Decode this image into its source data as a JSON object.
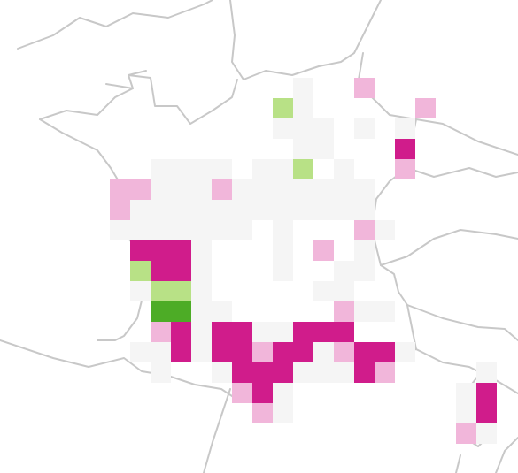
{
  "map": {
    "colors": {
      "-2": "#4dac26",
      "-1": "#b8e186",
      "0": "#f5f5f5",
      "1": "#f1b6da",
      "2": "#d01c8b"
    },
    "cells": [
      [
        9,
        0,
        0
      ],
      [
        12,
        0,
        1
      ],
      [
        8,
        1,
        -1
      ],
      [
        9,
        1,
        0
      ],
      [
        15,
        1,
        1
      ],
      [
        8,
        2,
        0
      ],
      [
        9,
        2,
        0
      ],
      [
        10,
        2,
        0
      ],
      [
        12,
        2,
        0
      ],
      [
        14,
        2,
        0
      ],
      [
        9,
        3,
        0
      ],
      [
        10,
        3,
        0
      ],
      [
        14,
        3,
        2
      ],
      [
        2,
        4,
        0
      ],
      [
        3,
        4,
        0
      ],
      [
        4,
        4,
        0
      ],
      [
        5,
        4,
        0
      ],
      [
        7,
        4,
        0
      ],
      [
        8,
        4,
        0
      ],
      [
        9,
        4,
        -1
      ],
      [
        11,
        4,
        0
      ],
      [
        14,
        4,
        1
      ],
      [
        0,
        5,
        1
      ],
      [
        1,
        5,
        1
      ],
      [
        2,
        5,
        0
      ],
      [
        3,
        5,
        0
      ],
      [
        4,
        5,
        0
      ],
      [
        5,
        5,
        1
      ],
      [
        6,
        5,
        0
      ],
      [
        7,
        5,
        0
      ],
      [
        8,
        5,
        0
      ],
      [
        9,
        5,
        0
      ],
      [
        10,
        5,
        0
      ],
      [
        11,
        5,
        0
      ],
      [
        12,
        5,
        0
      ],
      [
        0,
        6,
        1
      ],
      [
        1,
        6,
        0
      ],
      [
        2,
        6,
        0
      ],
      [
        3,
        6,
        0
      ],
      [
        4,
        6,
        0
      ],
      [
        5,
        6,
        0
      ],
      [
        6,
        6,
        0
      ],
      [
        7,
        6,
        0
      ],
      [
        8,
        6,
        0
      ],
      [
        9,
        6,
        0
      ],
      [
        10,
        6,
        0
      ],
      [
        11,
        6,
        0
      ],
      [
        12,
        6,
        0
      ],
      [
        0,
        7,
        0
      ],
      [
        1,
        7,
        0
      ],
      [
        2,
        7,
        0
      ],
      [
        3,
        7,
        0
      ],
      [
        4,
        7,
        0
      ],
      [
        5,
        7,
        0
      ],
      [
        6,
        7,
        0
      ],
      [
        8,
        7,
        0
      ],
      [
        12,
        7,
        1
      ],
      [
        13,
        7,
        0
      ],
      [
        1,
        8,
        2
      ],
      [
        2,
        8,
        2
      ],
      [
        3,
        8,
        2
      ],
      [
        4,
        8,
        0
      ],
      [
        8,
        8,
        0
      ],
      [
        10,
        8,
        1
      ],
      [
        12,
        8,
        0
      ],
      [
        1,
        9,
        -1
      ],
      [
        2,
        9,
        2
      ],
      [
        3,
        9,
        2
      ],
      [
        4,
        9,
        0
      ],
      [
        8,
        9,
        0
      ],
      [
        11,
        9,
        0
      ],
      [
        12,
        9,
        0
      ],
      [
        1,
        10,
        0
      ],
      [
        2,
        10,
        -1
      ],
      [
        3,
        10,
        -1
      ],
      [
        4,
        10,
        0
      ],
      [
        10,
        10,
        0
      ],
      [
        11,
        10,
        0
      ],
      [
        2,
        11,
        -2
      ],
      [
        3,
        11,
        -2
      ],
      [
        4,
        11,
        0
      ],
      [
        5,
        11,
        0
      ],
      [
        11,
        11,
        1
      ],
      [
        12,
        11,
        0
      ],
      [
        13,
        11,
        0
      ],
      [
        2,
        12,
        1
      ],
      [
        3,
        12,
        2
      ],
      [
        4,
        12,
        0
      ],
      [
        5,
        12,
        2
      ],
      [
        6,
        12,
        2
      ],
      [
        7,
        12,
        0
      ],
      [
        8,
        12,
        0
      ],
      [
        9,
        12,
        2
      ],
      [
        10,
        12,
        2
      ],
      [
        11,
        12,
        2
      ],
      [
        1,
        13,
        0
      ],
      [
        2,
        13,
        0
      ],
      [
        3,
        13,
        2
      ],
      [
        4,
        13,
        0
      ],
      [
        5,
        13,
        2
      ],
      [
        6,
        13,
        2
      ],
      [
        7,
        13,
        1
      ],
      [
        8,
        13,
        2
      ],
      [
        9,
        13,
        2
      ],
      [
        10,
        13,
        0
      ],
      [
        11,
        13,
        1
      ],
      [
        12,
        13,
        2
      ],
      [
        13,
        13,
        2
      ],
      [
        14,
        13,
        0
      ],
      [
        2,
        14,
        0
      ],
      [
        5,
        14,
        0
      ],
      [
        6,
        14,
        2
      ],
      [
        7,
        14,
        2
      ],
      [
        8,
        14,
        2
      ],
      [
        9,
        14,
        0
      ],
      [
        10,
        14,
        0
      ],
      [
        11,
        14,
        0
      ],
      [
        12,
        14,
        2
      ],
      [
        13,
        14,
        1
      ],
      [
        18,
        14,
        0
      ],
      [
        6,
        15,
        1
      ],
      [
        7,
        15,
        2
      ],
      [
        8,
        15,
        0
      ],
      [
        17,
        15,
        0
      ],
      [
        18,
        15,
        2
      ],
      [
        7,
        16,
        1
      ],
      [
        8,
        16,
        0
      ],
      [
        17,
        16,
        0
      ],
      [
        18,
        16,
        2
      ],
      [
        17,
        17,
        1
      ],
      [
        18,
        17,
        0
      ]
    ]
  }
}
